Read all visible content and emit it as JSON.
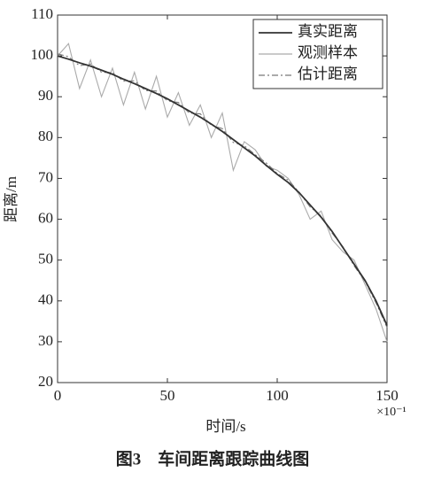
{
  "chart_data": {
    "type": "line",
    "title": "图3　车间距离跟踪曲线图",
    "xlabel": "时间/s",
    "ylabel": "距离/m",
    "x_scale_label": "×10⁻¹",
    "x": [
      0,
      5,
      10,
      15,
      20,
      25,
      30,
      35,
      40,
      45,
      50,
      55,
      60,
      65,
      70,
      75,
      80,
      85,
      90,
      95,
      100,
      105,
      110,
      115,
      120,
      125,
      130,
      135,
      140,
      145,
      150
    ],
    "series": [
      {
        "name": "真实距离",
        "color": "#333333",
        "linestyle": "solid",
        "values": [
          100,
          99.2,
          98.3,
          97.5,
          96.5,
          95.5,
          94.3,
          93.2,
          92,
          90.8,
          89.5,
          88,
          86.5,
          85,
          83.3,
          81.5,
          79.5,
          77.5,
          75.5,
          73.2,
          71,
          69,
          66.5,
          63.5,
          60.5,
          57,
          53,
          49,
          45,
          40,
          34
        ]
      },
      {
        "name": "观测样本",
        "color": "#aaaaaa",
        "linestyle": "solid",
        "values": [
          100,
          103,
          92,
          99,
          90,
          97,
          88,
          96,
          87,
          95,
          85,
          91,
          83,
          88,
          80,
          86,
          72,
          79,
          77,
          73,
          72,
          70,
          66,
          60,
          62,
          55,
          52,
          50,
          44,
          38,
          30
        ]
      },
      {
        "name": "估计距离",
        "color": "#777777",
        "linestyle": "dashdot",
        "values": [
          100.5,
          99.8,
          97.6,
          98,
          96,
          95.9,
          93.8,
          93.9,
          91.5,
          91.4,
          89,
          88.6,
          86,
          85.8,
          83,
          82.2,
          78.8,
          78,
          75.8,
          73.8,
          71.2,
          69.6,
          66.6,
          63,
          60.8,
          56.6,
          53.2,
          48.6,
          44.8,
          39.5,
          33.5
        ]
      }
    ],
    "xlim": [
      0,
      150
    ],
    "xticks": [
      0,
      50,
      100,
      150
    ],
    "ylim": [
      20,
      110
    ],
    "yticks": [
      20,
      30,
      40,
      50,
      60,
      70,
      80,
      90,
      100,
      110
    ],
    "legend": "upper right"
  }
}
